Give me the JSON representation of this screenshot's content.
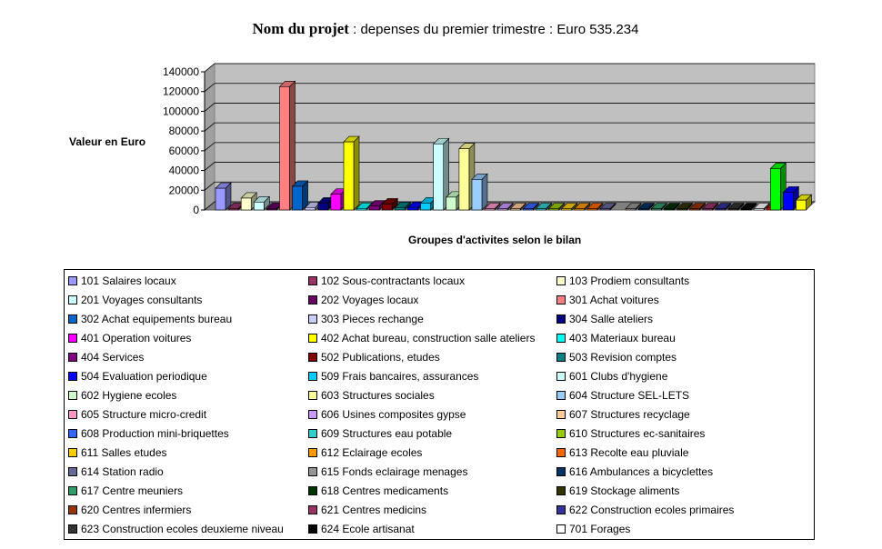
{
  "title_project": "Nom du projet",
  "title_rest": " : depenses du premier trimestre : Euro 535.234",
  "chart_data": {
    "type": "bar",
    "title": "Nom du projet : depenses du premier trimestre : Euro 535.234",
    "ylabel": "Valeur en Euro",
    "xlabel": "Groupes d'activites selon le bilan",
    "ylim": [
      0,
      140000
    ],
    "yticks": [
      0,
      20000,
      40000,
      60000,
      80000,
      100000,
      120000,
      140000
    ],
    "ytick_labels": [
      "0",
      "20000",
      "40000",
      "60000",
      "80000",
      "100000",
      "120000",
      "140000"
    ],
    "grid": true,
    "legend_position": "bottom",
    "series": [
      {
        "name": "101 Salaires locaux",
        "value": 22000,
        "color": "#9999FF"
      },
      {
        "name": "102 Sous-contractants locaux",
        "value": 1500,
        "color": "#993366"
      },
      {
        "name": "103 Prodiem consultants",
        "value": 12000,
        "color": "#FFFFCC"
      },
      {
        "name": "201 Voyages consultants",
        "value": 8000,
        "color": "#CCFFFF"
      },
      {
        "name": "202 Voyages locaux",
        "value": 1500,
        "color": "#660066"
      },
      {
        "name": "301 Achat voitures",
        "value": 125000,
        "color": "#FF8080"
      },
      {
        "name": "302 Achat equipements bureau",
        "value": 24000,
        "color": "#0066CC"
      },
      {
        "name": "303 Pieces rechange",
        "value": 2500,
        "color": "#CCCCFF"
      },
      {
        "name": "304 Salle ateliers",
        "value": 7000,
        "color": "#000080"
      },
      {
        "name": "401 Operation voitures",
        "value": 16000,
        "color": "#FF00FF"
      },
      {
        "name": "402 Achat bureau, construction salle ateliers",
        "value": 69000,
        "color": "#FFFF00"
      },
      {
        "name": "403 Materiaux bureau",
        "value": 1500,
        "color": "#00FFFF"
      },
      {
        "name": "404 Services",
        "value": 4000,
        "color": "#800080"
      },
      {
        "name": "502 Publications, etudes",
        "value": 6000,
        "color": "#800000"
      },
      {
        "name": "503 Revision comptes",
        "value": 2500,
        "color": "#008080"
      },
      {
        "name": "504 Evaluation periodique",
        "value": 2500,
        "color": "#0000FF"
      },
      {
        "name": "509 Frais bancaires, assurances",
        "value": 7000,
        "color": "#00CCFF"
      },
      {
        "name": "601 Clubs d'hygiene",
        "value": 67000,
        "color": "#CCFFFF"
      },
      {
        "name": "602 Hygiene ecoles",
        "value": 13000,
        "color": "#CCFFCC"
      },
      {
        "name": "603 Structures sociales",
        "value": 62000,
        "color": "#FFFF99"
      },
      {
        "name": "604 Structure SEL-LETS",
        "value": 31000,
        "color": "#99CCFF"
      },
      {
        "name": "605 Structure micro-credit",
        "value": 800,
        "color": "#FF99CC"
      },
      {
        "name": "606 Usines composites gypse",
        "value": 800,
        "color": "#CC99FF"
      },
      {
        "name": "607 Structures recyclage",
        "value": 800,
        "color": "#FFCC99"
      },
      {
        "name": "608 Production mini-briquettes",
        "value": 800,
        "color": "#3366FF"
      },
      {
        "name": "609 Structures eau potable",
        "value": 800,
        "color": "#33CCCC"
      },
      {
        "name": "610 Structures ec-sanitaires",
        "value": 800,
        "color": "#99CC00"
      },
      {
        "name": "611 Salles etudes",
        "value": 800,
        "color": "#FFCC00"
      },
      {
        "name": "612 Eclairage ecoles",
        "value": 800,
        "color": "#FF9900"
      },
      {
        "name": "613 Recolte eau pluviale",
        "value": 800,
        "color": "#FF6600"
      },
      {
        "name": "614 Station radio",
        "value": 800,
        "color": "#666699"
      },
      {
        "name": "615 Fonds eclairage menages",
        "value": 800,
        "color": "#969696"
      },
      {
        "name": "616 Ambulances  a bicyclettes",
        "value": 800,
        "color": "#003366"
      },
      {
        "name": "617 Centre meuniers",
        "value": 800,
        "color": "#339966"
      },
      {
        "name": "618 Centres medicaments",
        "value": 800,
        "color": "#003300"
      },
      {
        "name": "619 Stockage aliments",
        "value": 800,
        "color": "#333300"
      },
      {
        "name": "620 Centres infermiers",
        "value": 800,
        "color": "#993300"
      },
      {
        "name": "621 Centres medicins",
        "value": 800,
        "color": "#993366"
      },
      {
        "name": "622 Construction ecoles primaires",
        "value": 800,
        "color": "#333399"
      },
      {
        "name": "623 Construction ecoles deuxieme niveau",
        "value": 800,
        "color": "#333333"
      },
      {
        "name": "624 Ecole artisanat",
        "value": 800,
        "color": "#000000"
      },
      {
        "name": "701 Forages",
        "value": 800,
        "color": "#FFFFFF"
      },
      {
        "name": "",
        "value": 2000,
        "color": "#FF0000"
      },
      {
        "name": "",
        "value": 42000,
        "color": "#00FF00"
      },
      {
        "name": "",
        "value": 18000,
        "color": "#0000FF"
      },
      {
        "name": "",
        "value": 10000,
        "color": "#FFFF00"
      }
    ]
  }
}
